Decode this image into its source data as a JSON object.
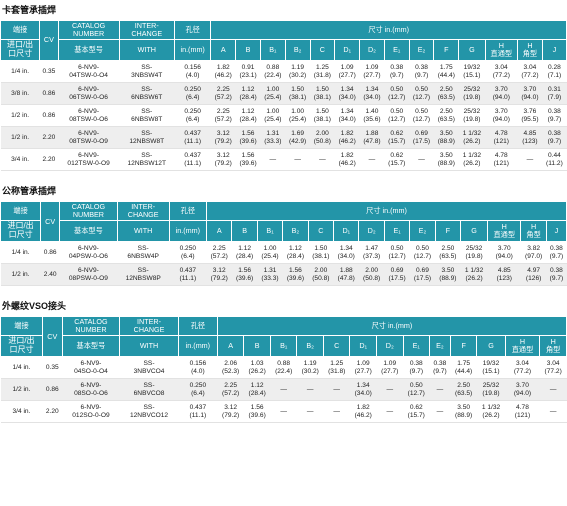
{
  "sections": [
    {
      "title": "卡套管承插焊",
      "header": {
        "end": "端接",
        "cv": "CV",
        "catalog": "CATALOG\nNUMBER",
        "interchange": "INTER-\nCHANGE",
        "bore": "孔径",
        "dims": "尺寸 in.(mm)",
        "end_size": "进口/出\n口尺寸",
        "base_model": "基本型号",
        "with": "WITH",
        "bore_unit": "in.(mm)",
        "cols": [
          "A",
          "B",
          "B₁",
          "B₂",
          "C",
          "D₁",
          "D₂",
          "E₁",
          "E₂",
          "F",
          "G",
          "H\n直通型",
          "H\n角型",
          "J"
        ]
      },
      "rows": [
        [
          "1/4 in.",
          "0.35",
          "6-NV9-\n04TSW-0-O4",
          "SS-\n3NBSW4T",
          "0.156\n(4.0)",
          "1.82\n(46.2)",
          "0.91\n(23.1)",
          "0.88\n(22.4)",
          "1.19\n(30.2)",
          "1.25\n(31.8)",
          "1.09\n(27.7)",
          "1.09\n(27.7)",
          "0.38\n(9.7)",
          "0.38\n(9.7)",
          "1.75\n(44.4)",
          "19/32\n(15.1)",
          "3.04\n(77.2)",
          "3.04\n(77.2)",
          "0.28\n(7.1)"
        ],
        [
          "3/8 in.",
          "0.86",
          "6-NV9-\n06TSW-0-O6",
          "SS-\n6NBSW6T",
          "0.250\n(6.4)",
          "2.25\n(57.2)",
          "1.12\n(28.4)",
          "1.00\n(25.4)",
          "1.50\n(38.1)",
          "1.50\n(38.1)",
          "1.34\n(34.0)",
          "1.34\n(34.0)",
          "0.50\n(12.7)",
          "0.50\n(12.7)",
          "2.50\n(63.5)",
          "25/32\n(19.8)",
          "3.70\n(94.0)",
          "3.70\n(94.0)",
          "0.31\n(7.9)"
        ],
        [
          "1/2 in.",
          "0.86",
          "6-NV9-\n08TSW-0-O6",
          "SS-\n6NBSW8T",
          "0.250\n(6.4)",
          "2.25\n(57.2)",
          "1.12\n(28.4)",
          "1.00\n(25.4)",
          "1.00\n(25.4)",
          "1.50\n(38.1)",
          "1.34\n(34.0)",
          "1.40\n(35.6)",
          "0.50\n(12.7)",
          "0.50\n(12.7)",
          "2.50\n(63.5)",
          "25/32\n(19.8)",
          "3.70\n(94.0)",
          "3.76\n(95.5)",
          "0.38\n(9.7)"
        ],
        [
          "1/2 in.",
          "2.20",
          "6-NV9-\n08TSW-0-O9",
          "SS-\n12NBSW8T",
          "0.437\n(11.1)",
          "3.12\n(79.2)",
          "1.56\n(39.6)",
          "1.31\n(33.3)",
          "1.69\n(42.9)",
          "2.00\n(50.8)",
          "1.82\n(46.2)",
          "1.88\n(47.8)",
          "0.62\n(15.7)",
          "0.69\n(17.5)",
          "3.50\n(88.9)",
          "1 1/32\n(26.2)",
          "4.78\n(121)",
          "4.85\n(123)",
          "0.38\n(9.7)"
        ],
        [
          "3/4 in.",
          "2.20",
          "6-NV9-\n012TSW-0-O9",
          "SS-\n12NBSW12T",
          "0.437\n(11.1)",
          "3.12\n(79.2)",
          "1.56\n(39.6)",
          "—",
          "—",
          "—",
          "1.82\n(46.2)",
          "—",
          "0.62\n(15.7)",
          "—",
          "3.50\n(88.9)",
          "1 1/32\n(26.2)",
          "4.78\n(121)",
          "—",
          "0.44\n(11.2)"
        ]
      ]
    },
    {
      "title": "公称管承插焊",
      "header": {
        "end": "端接",
        "cv": "CV",
        "catalog": "CATALOG\nNUMBER",
        "interchange": "INTER-\nCHANGE",
        "bore": "孔径",
        "dims": "尺寸 in.(mm)",
        "end_size": "进口/出\n口尺寸",
        "base_model": "基本型号",
        "with": "WITH",
        "bore_unit": "in.(mm)",
        "cols": [
          "A",
          "B",
          "B₁",
          "B₂",
          "C",
          "D₁",
          "D₂",
          "E₁",
          "E₂",
          "F",
          "G",
          "H\n直通型",
          "H\n角型",
          "J"
        ]
      },
      "rows": [
        [
          "1/4 in.",
          "0.86",
          "6-NV9-\n04PSW-0-O6",
          "SS-\n6NBSW4P",
          "0.250\n(6.4)",
          "2.25\n(57.2)",
          "1.12\n(28.4)",
          "1.00\n(25.4)",
          "1.12\n(28.4)",
          "1.50\n(38.1)",
          "1.34\n(34.0)",
          "1.47\n(37.3)",
          "0.50\n(12.7)",
          "0.50\n(12.7)",
          "2.50\n(63.5)",
          "25/32\n(19.8)",
          "3.70\n(94.0)",
          "3.82\n(97.0)",
          "0.38\n(9.7)"
        ],
        [
          "1/2 in.",
          "2.40",
          "6-NV9-\n08PSW-0-O9",
          "SS-\n12NBSW8P",
          "0.437\n(11.1)",
          "3.12\n(79.2)",
          "1.56\n(39.6)",
          "1.31\n(33.3)",
          "1.56\n(39.6)",
          "2.00\n(50.8)",
          "1.88\n(47.8)",
          "2.00\n(50.8)",
          "0.69\n(17.5)",
          "0.69\n(17.5)",
          "3.50\n(88.9)",
          "1 1/32\n(26.2)",
          "4.85\n(123)",
          "4.97\n(126)",
          "0.38\n(9.7)"
        ]
      ]
    },
    {
      "title": "外螺纹VSO接头",
      "header": {
        "end": "端接",
        "cv": "CV",
        "catalog": "CATALOG\nNUMBER",
        "interchange": "INTER-\nCHANGE",
        "bore": "孔径",
        "dims": "尺寸 in.(mm)",
        "end_size": "进口/出\n口尺寸",
        "base_model": "基本型号",
        "with": "WITH",
        "bore_unit": "in.(mm)",
        "cols": [
          "A",
          "B",
          "B₁",
          "B₂",
          "C",
          "D₁",
          "D₂",
          "E₁",
          "E₂",
          "F",
          "G",
          "H\n直通型",
          "H\n角型"
        ]
      },
      "rows": [
        [
          "1/4 in.",
          "0.35",
          "6-NV9-\n04SO-0-O4",
          "SS-\n3NBVCO4",
          "0.156\n(4.0)",
          "2.06\n(52.3)",
          "1.03\n(26.2)",
          "0.88\n(22.4)",
          "1.19\n(30.2)",
          "1.25\n(31.8)",
          "1.09\n(27.7)",
          "1.09\n(27.7)",
          "0.38\n(9.7)",
          "0.38\n(9.7)",
          "1.75\n(44.4)",
          "19/32\n(15.1)",
          "3.04\n(77.2)",
          "3.04\n(77.2)"
        ],
        [
          "1/2 in.",
          "0.86",
          "6-NV9-\n08SO-0-O6",
          "SS-\n6NBVCO8",
          "0.250\n(6.4)",
          "2.25\n(57.2)",
          "1.12\n(28.4)",
          "—",
          "—",
          "—",
          "1.34\n(34.0)",
          "—",
          "0.50\n(12.7)",
          "—",
          "2.50\n(63.5)",
          "25/32\n(19.8)",
          "3.70\n(94.0)",
          "—"
        ],
        [
          "3/4 in.",
          "2.20",
          "6-NV9-\n012SO-0-O9",
          "SS-\n12NBVCO12",
          "0.437\n(11.1)",
          "3.12\n(79.2)",
          "1.56\n(39.6)",
          "—",
          "—",
          "—",
          "1.82\n(46.2)",
          "—",
          "0.62\n(15.7)",
          "—",
          "3.50\n(88.9)",
          "1 1/32\n(26.2)",
          "4.78\n(121)",
          "—"
        ]
      ]
    }
  ]
}
